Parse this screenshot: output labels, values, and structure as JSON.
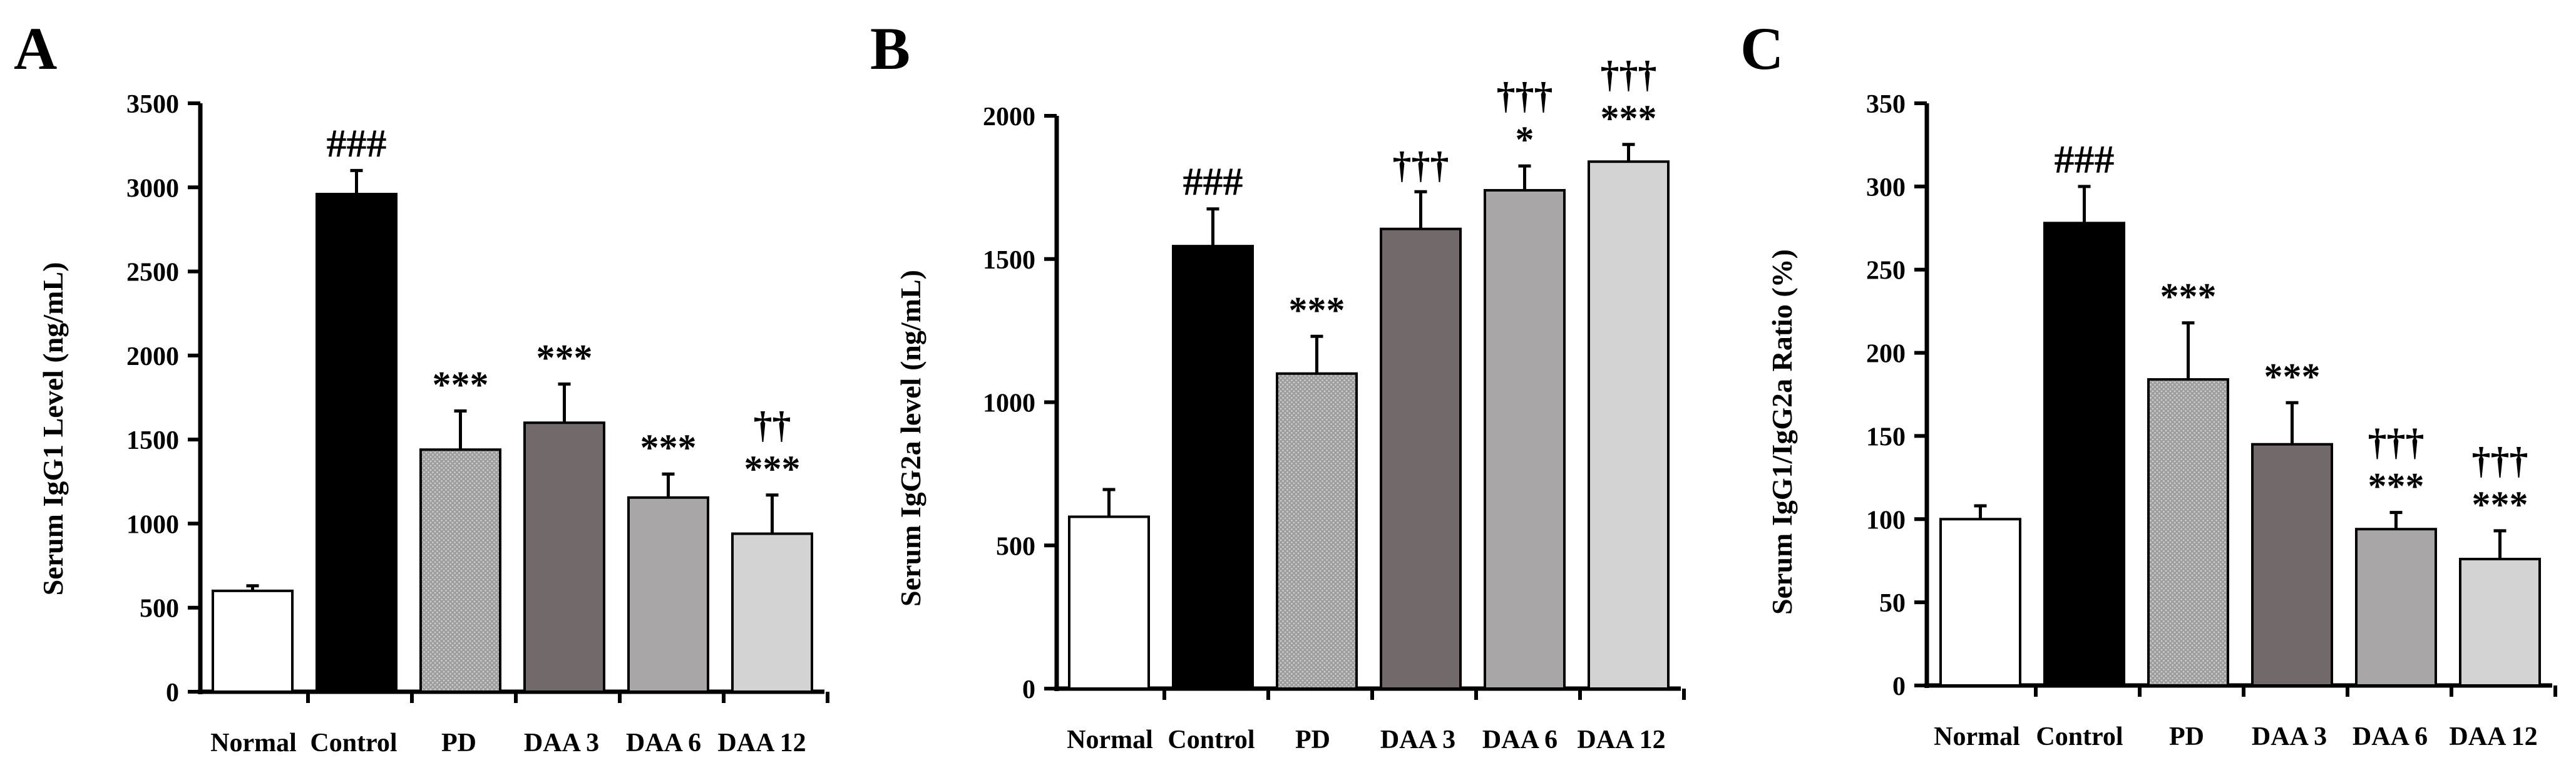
{
  "figure": {
    "background": "#ffffff"
  },
  "chart_data": [
    {
      "panel_label": "A",
      "type": "bar",
      "title": "",
      "xlabel": "",
      "ylabel": "Serum IgG1 Level (ng/mL)",
      "ylim": [
        0,
        3500
      ],
      "yticks": [
        0,
        500,
        1000,
        1500,
        2000,
        2500,
        3000,
        3500
      ],
      "ytick_labels": [
        "0",
        "500",
        "1000",
        "1500",
        "2000",
        "2500",
        "3000",
        "3500"
      ],
      "categories": [
        "Normal",
        "Control",
        "PD",
        "DAA 3",
        "DAA 6",
        "DAA 12"
      ],
      "values": [
        600,
        2960,
        1440,
        1600,
        1155,
        940
      ],
      "errors": [
        30,
        140,
        230,
        230,
        140,
        230
      ],
      "significance": [
        [],
        [
          "###"
        ],
        [
          "***"
        ],
        [
          "***"
        ],
        [
          "***"
        ],
        [
          "***",
          "††"
        ]
      ]
    },
    {
      "panel_label": "B",
      "type": "bar",
      "title": "",
      "xlabel": "",
      "ylabel": "Serum IgG2a level (ng/mL)",
      "ylim": [
        0,
        2000
      ],
      "yticks": [
        0,
        500,
        1000,
        1500,
        2000
      ],
      "ytick_labels": [
        "0",
        "500",
        "1000",
        "1500",
        "2000"
      ],
      "categories": [
        "Normal",
        "Control",
        "PD",
        "DAA 3",
        "DAA 6",
        "DAA 12"
      ],
      "values": [
        600,
        1545,
        1100,
        1605,
        1740,
        1840
      ],
      "errors": [
        95,
        130,
        130,
        130,
        85,
        60
      ],
      "significance": [
        [],
        [
          "###"
        ],
        [
          "***"
        ],
        [
          "†††"
        ],
        [
          "*",
          "†††"
        ],
        [
          "***",
          "†††"
        ]
      ]
    },
    {
      "panel_label": "C",
      "type": "bar",
      "title": "",
      "xlabel": "",
      "ylabel": "Serum IgG1/IgG2a Ratio (%)",
      "ylim": [
        0,
        350
      ],
      "yticks": [
        0,
        50,
        100,
        150,
        200,
        250,
        300,
        350
      ],
      "ytick_labels": [
        "0",
        "50",
        "100",
        "150",
        "200",
        "250",
        "300",
        "350"
      ],
      "categories": [
        "Normal",
        "Control",
        "PD",
        "DAA 3",
        "DAA 6",
        "DAA 12"
      ],
      "values": [
        100,
        278,
        184,
        145,
        94,
        76
      ],
      "errors": [
        8,
        22,
        34,
        25,
        10,
        17
      ],
      "significance": [
        [],
        [
          "###"
        ],
        [
          "***"
        ],
        [
          "***"
        ],
        [
          "***",
          "†††"
        ],
        [
          "***",
          "†††"
        ]
      ]
    }
  ],
  "bar_styles": [
    {
      "name": "Normal",
      "fill": "#ffffff",
      "pattern": "none"
    },
    {
      "name": "Control",
      "fill": "#000000",
      "pattern": "none"
    },
    {
      "name": "PD",
      "fill": "#a9a9a9",
      "pattern": "dots"
    },
    {
      "name": "DAA 3",
      "fill": "#726a6a",
      "pattern": "none"
    },
    {
      "name": "DAA 6",
      "fill": "#a8a6a6",
      "pattern": "none"
    },
    {
      "name": "DAA 12",
      "fill": "#d3d3d3",
      "pattern": "none"
    }
  ]
}
